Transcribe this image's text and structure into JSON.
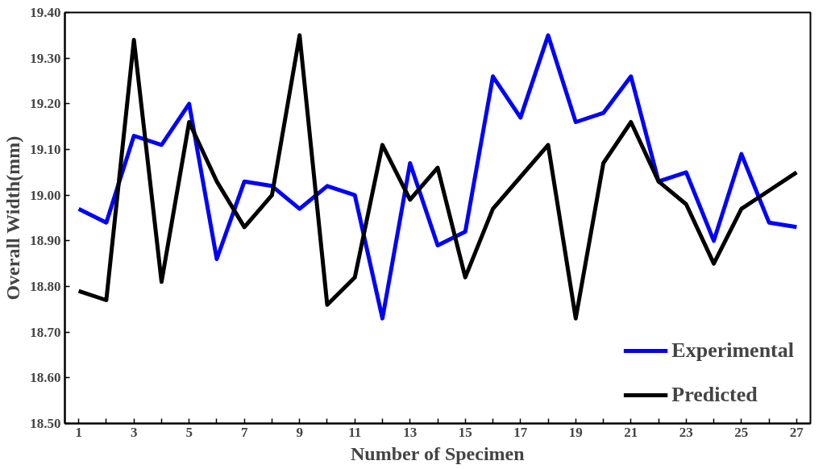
{
  "chart_data": {
    "type": "line",
    "xlabel": "Number of Specimen",
    "ylabel": "Overall Width(mm)",
    "x": [
      1,
      2,
      3,
      4,
      5,
      6,
      7,
      8,
      9,
      10,
      11,
      12,
      13,
      14,
      15,
      16,
      17,
      18,
      19,
      20,
      21,
      22,
      23,
      24,
      25,
      26,
      27
    ],
    "series": [
      {
        "name": "Experimental",
        "color": "#0000ff",
        "values": [
          18.97,
          18.94,
          19.13,
          19.11,
          19.2,
          18.86,
          19.03,
          19.02,
          18.97,
          19.02,
          19.0,
          18.73,
          19.07,
          18.89,
          18.92,
          19.26,
          19.17,
          19.35,
          19.16,
          19.18,
          19.26,
          19.03,
          19.05,
          18.9,
          19.09,
          18.94,
          18.93
        ]
      },
      {
        "name": "Predicted",
        "color": "#000000",
        "values": [
          18.79,
          18.77,
          19.34,
          18.81,
          19.16,
          19.03,
          18.93,
          19.0,
          19.35,
          18.76,
          18.82,
          19.11,
          18.99,
          19.06,
          18.82,
          18.97,
          19.04,
          19.11,
          18.73,
          19.07,
          19.16,
          19.03,
          18.98,
          18.85,
          18.97,
          19.01,
          19.05
        ]
      }
    ],
    "xlim": [
      0.5,
      27.5
    ],
    "xticks": [
      1,
      {
        "value": 2,
        "label": null
      },
      3,
      {
        "value": 4,
        "label": null
      },
      5,
      {
        "value": 6,
        "label": null
      },
      7,
      {
        "value": 8,
        "label": null
      },
      9,
      {
        "value": 10,
        "label": null
      },
      11,
      {
        "value": 12,
        "label": null
      },
      13,
      {
        "value": 14,
        "label": null
      },
      15,
      {
        "value": 16,
        "label": null
      },
      17,
      {
        "value": 18,
        "label": null
      },
      19,
      {
        "value": 20,
        "label": null
      },
      21,
      {
        "value": 22,
        "label": null
      },
      23,
      {
        "value": 24,
        "label": null
      },
      25,
      {
        "value": 26,
        "label": null
      },
      27
    ],
    "ylim": [
      18.5,
      19.4
    ],
    "yticks": [
      {
        "value": 18.5,
        "label": "18.50"
      },
      {
        "value": 18.6,
        "label": "18.60"
      },
      {
        "value": 18.7,
        "label": "18.70"
      },
      {
        "value": 18.8,
        "label": "18.80"
      },
      {
        "value": 18.9,
        "label": "18.90"
      },
      {
        "value": 19.0,
        "label": "19.00"
      },
      {
        "value": 19.1,
        "label": "19.10"
      },
      {
        "value": 19.2,
        "label": "19.20"
      },
      {
        "value": 19.3,
        "label": "19.30"
      },
      {
        "value": 19.4,
        "label": "19.40"
      }
    ],
    "grid": false,
    "legend": "bottom right",
    "marker": "none",
    "line_style": "solid"
  }
}
